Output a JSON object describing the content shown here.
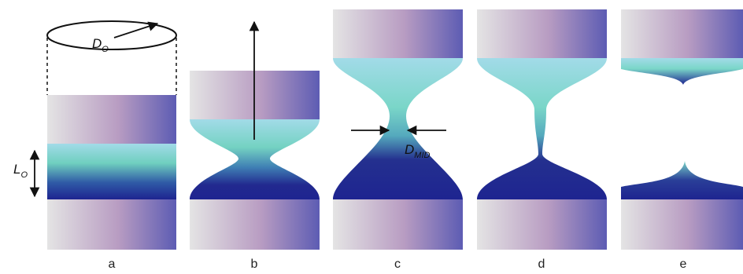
{
  "panels": [
    {
      "id": "a",
      "label": "a"
    },
    {
      "id": "b",
      "label": "b"
    },
    {
      "id": "c",
      "label": "c"
    },
    {
      "id": "d",
      "label": "d"
    },
    {
      "id": "e",
      "label": "e"
    }
  ],
  "annotations": {
    "diameter_symbol": "D",
    "diameter_subscript": "O",
    "length_symbol": "L",
    "length_subscript": "O",
    "mid_symbol": "D",
    "mid_subscript": "MID"
  },
  "colors": {
    "plate_light": "#e6e6e6",
    "plate_mid": "#b79bc0",
    "plate_dark": "#5c5bb0",
    "liquid_top": "#9fd8e6",
    "liquid_mid": "#6fcfbf",
    "liquid_bottom": "#23268f"
  }
}
